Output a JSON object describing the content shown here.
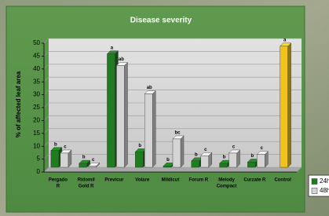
{
  "chart_data": {
    "type": "bar",
    "title": "Disease severity",
    "y_label": "% of affected leaf area",
    "categories": [
      [
        "Pergado",
        "R"
      ],
      [
        "Ridomil",
        "Gold R"
      ],
      [
        "Previcur"
      ],
      [
        "Volare"
      ],
      [
        "Mildicut"
      ],
      [
        "Forum R"
      ],
      [
        "Melody",
        "Compact"
      ],
      [
        "Curzate R"
      ],
      [
        "Control"
      ]
    ],
    "series": [
      {
        "name": "24h",
        "color": "#1e7d1e",
        "values": [
          6.5,
          1.5,
          44,
          6,
          0.5,
          2.5,
          1.5,
          2,
          47
        ],
        "letters": [
          "b",
          "b",
          "a",
          "b",
          "b",
          "b",
          "b",
          "b",
          "a"
        ],
        "point_colors": [
          null,
          null,
          null,
          null,
          null,
          null,
          null,
          null,
          "#f2c218"
        ]
      },
      {
        "name": "48h",
        "color": "#d4d4d4",
        "values": [
          5.5,
          0.5,
          39.5,
          28.5,
          11,
          4.5,
          5.5,
          5,
          null
        ],
        "letters": [
          "c",
          "c",
          "ab",
          "ab",
          "bc",
          "c",
          "c",
          "c",
          null
        ]
      }
    ],
    "ylim": [
      0,
      50
    ],
    "yticks": [
      0,
      5,
      10,
      15,
      20,
      25,
      30,
      35,
      40,
      45,
      50
    ],
    "grid": true
  }
}
